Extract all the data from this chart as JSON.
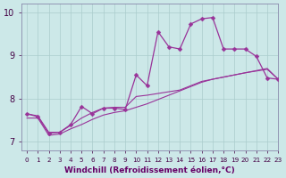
{
  "bg_color": "#cce8e8",
  "line_color": "#993399",
  "grid_color": "#aacccc",
  "xlabel": "Windchill (Refroidissement éolien,°C)",
  "xlim": [
    -0.5,
    23
  ],
  "ylim": [
    6.8,
    10.2
  ],
  "yticks": [
    7,
    8,
    9,
    10
  ],
  "xticks": [
    0,
    1,
    2,
    3,
    4,
    5,
    6,
    7,
    8,
    9,
    10,
    11,
    12,
    13,
    14,
    15,
    16,
    17,
    18,
    19,
    20,
    21,
    22,
    23
  ],
  "volatile_x": [
    0,
    1,
    2,
    3,
    4,
    5,
    6,
    7,
    8,
    9,
    10,
    11,
    12,
    13,
    14,
    15,
    16,
    17,
    18,
    19,
    20,
    21,
    22,
    23
  ],
  "volatile_y": [
    7.65,
    7.58,
    7.2,
    7.22,
    7.4,
    7.82,
    7.65,
    7.78,
    7.78,
    7.75,
    8.55,
    8.3,
    9.55,
    9.2,
    9.15,
    9.73,
    9.85,
    9.88,
    9.15,
    9.15,
    9.15,
    8.98,
    8.48,
    8.45
  ],
  "linear_bottom_x": [
    0,
    1,
    2,
    3,
    4,
    5,
    6,
    7,
    8,
    9,
    10,
    11,
    12,
    13,
    14,
    15,
    16,
    17,
    18,
    19,
    20,
    21,
    22,
    23
  ],
  "linear_bottom_y": [
    7.55,
    7.55,
    7.15,
    7.18,
    7.3,
    7.4,
    7.52,
    7.62,
    7.68,
    7.72,
    7.8,
    7.88,
    7.98,
    8.08,
    8.18,
    8.28,
    8.38,
    8.45,
    8.5,
    8.55,
    8.6,
    8.64,
    8.68,
    8.45
  ],
  "linear_mid_x": [
    0,
    1,
    2,
    3,
    4,
    5,
    6,
    7,
    8,
    9,
    10,
    11,
    12,
    13,
    14,
    15,
    16,
    17,
    18,
    19,
    20,
    21,
    22,
    23
  ],
  "linear_mid_y": [
    7.65,
    7.6,
    7.22,
    7.22,
    7.38,
    7.55,
    7.68,
    7.78,
    7.8,
    7.8,
    8.05,
    8.08,
    8.12,
    8.16,
    8.2,
    8.3,
    8.4,
    8.45,
    8.5,
    8.55,
    8.6,
    8.65,
    8.7,
    8.45
  ]
}
